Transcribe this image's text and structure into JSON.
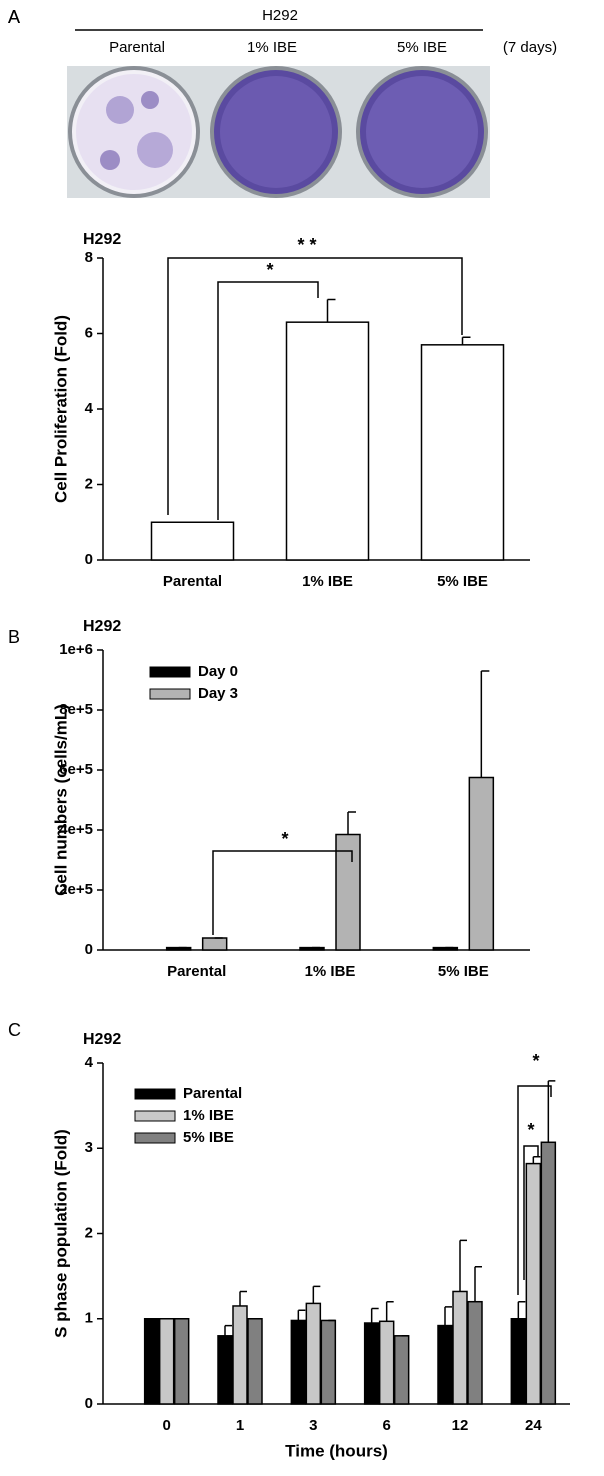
{
  "header": {
    "panel": "A",
    "title": "H292",
    "columns": [
      "Parental",
      "1% IBE",
      "5% IBE"
    ],
    "duration": "(7 days)"
  },
  "chart_data": [
    {
      "type": "bar",
      "panel": "A",
      "title": "H292",
      "y_label": "Cell Proliferation (Fold)",
      "categories": [
        "Parental",
        "1% IBE",
        "5% IBE"
      ],
      "values": [
        1,
        6.3,
        5.7
      ],
      "errors": [
        0,
        0.6,
        0.2
      ],
      "color": "#ffffff",
      "ylim": [
        0,
        8
      ],
      "yticks": [
        0,
        2,
        4,
        6,
        8
      ],
      "annotations": [
        "*",
        "* *"
      ]
    },
    {
      "type": "bar",
      "panel": "B",
      "title": "H292",
      "y_label": "Cell numbers (cells/mL)",
      "categories": [
        "Parental",
        "1% IBE",
        "5% IBE"
      ],
      "series": [
        {
          "name": "Day 0",
          "color": "#000000",
          "values": [
            8000,
            8000,
            8000
          ],
          "errors": [
            0,
            0,
            0
          ]
        },
        {
          "name": "Day 3",
          "color": "#b3b3b3",
          "values": [
            40000,
            385000,
            575000
          ],
          "errors": [
            0,
            75000,
            355000
          ]
        }
      ],
      "ylim": [
        0,
        1000000
      ],
      "yticks": [
        0,
        {
          "value": 200000,
          "label": "2e+5"
        },
        {
          "value": 400000,
          "label": "4e+5"
        },
        {
          "value": 600000,
          "label": "6e+5"
        },
        {
          "value": 800000,
          "label": "8e+5"
        },
        {
          "value": 1000000,
          "label": "1e+6"
        }
      ],
      "legend": "upper left",
      "annotations": [
        "*"
      ]
    },
    {
      "type": "bar",
      "panel": "C",
      "title": "H292",
      "y_label": "S phase population (Fold)",
      "x_label": "Time (hours)",
      "categories": [
        "0",
        "1",
        "3",
        "6",
        "12",
        "24"
      ],
      "series": [
        {
          "name": "Parental",
          "color": "#000000",
          "values": [
            1,
            0.8,
            0.98,
            0.95,
            0.92,
            1.0
          ],
          "errors": [
            0,
            0.12,
            0.12,
            0.17,
            0.22,
            0.2
          ]
        },
        {
          "name": "1% IBE",
          "color": "#c8c8c8",
          "values": [
            1,
            1.15,
            1.18,
            0.97,
            1.32,
            2.82
          ],
          "errors": [
            0,
            0.17,
            0.2,
            0.23,
            0.6,
            0.08
          ]
        },
        {
          "name": "5% IBE",
          "color": "#808080",
          "values": [
            1,
            1.0,
            0.98,
            0.8,
            1.2,
            3.07
          ],
          "errors": [
            0,
            0,
            0,
            0,
            0.41,
            0.72
          ]
        }
      ],
      "ylim": [
        0,
        4
      ],
      "yticks": [
        0,
        1,
        2,
        3,
        4
      ],
      "legend": "upper left",
      "annotations": [
        "*",
        "*"
      ]
    }
  ]
}
